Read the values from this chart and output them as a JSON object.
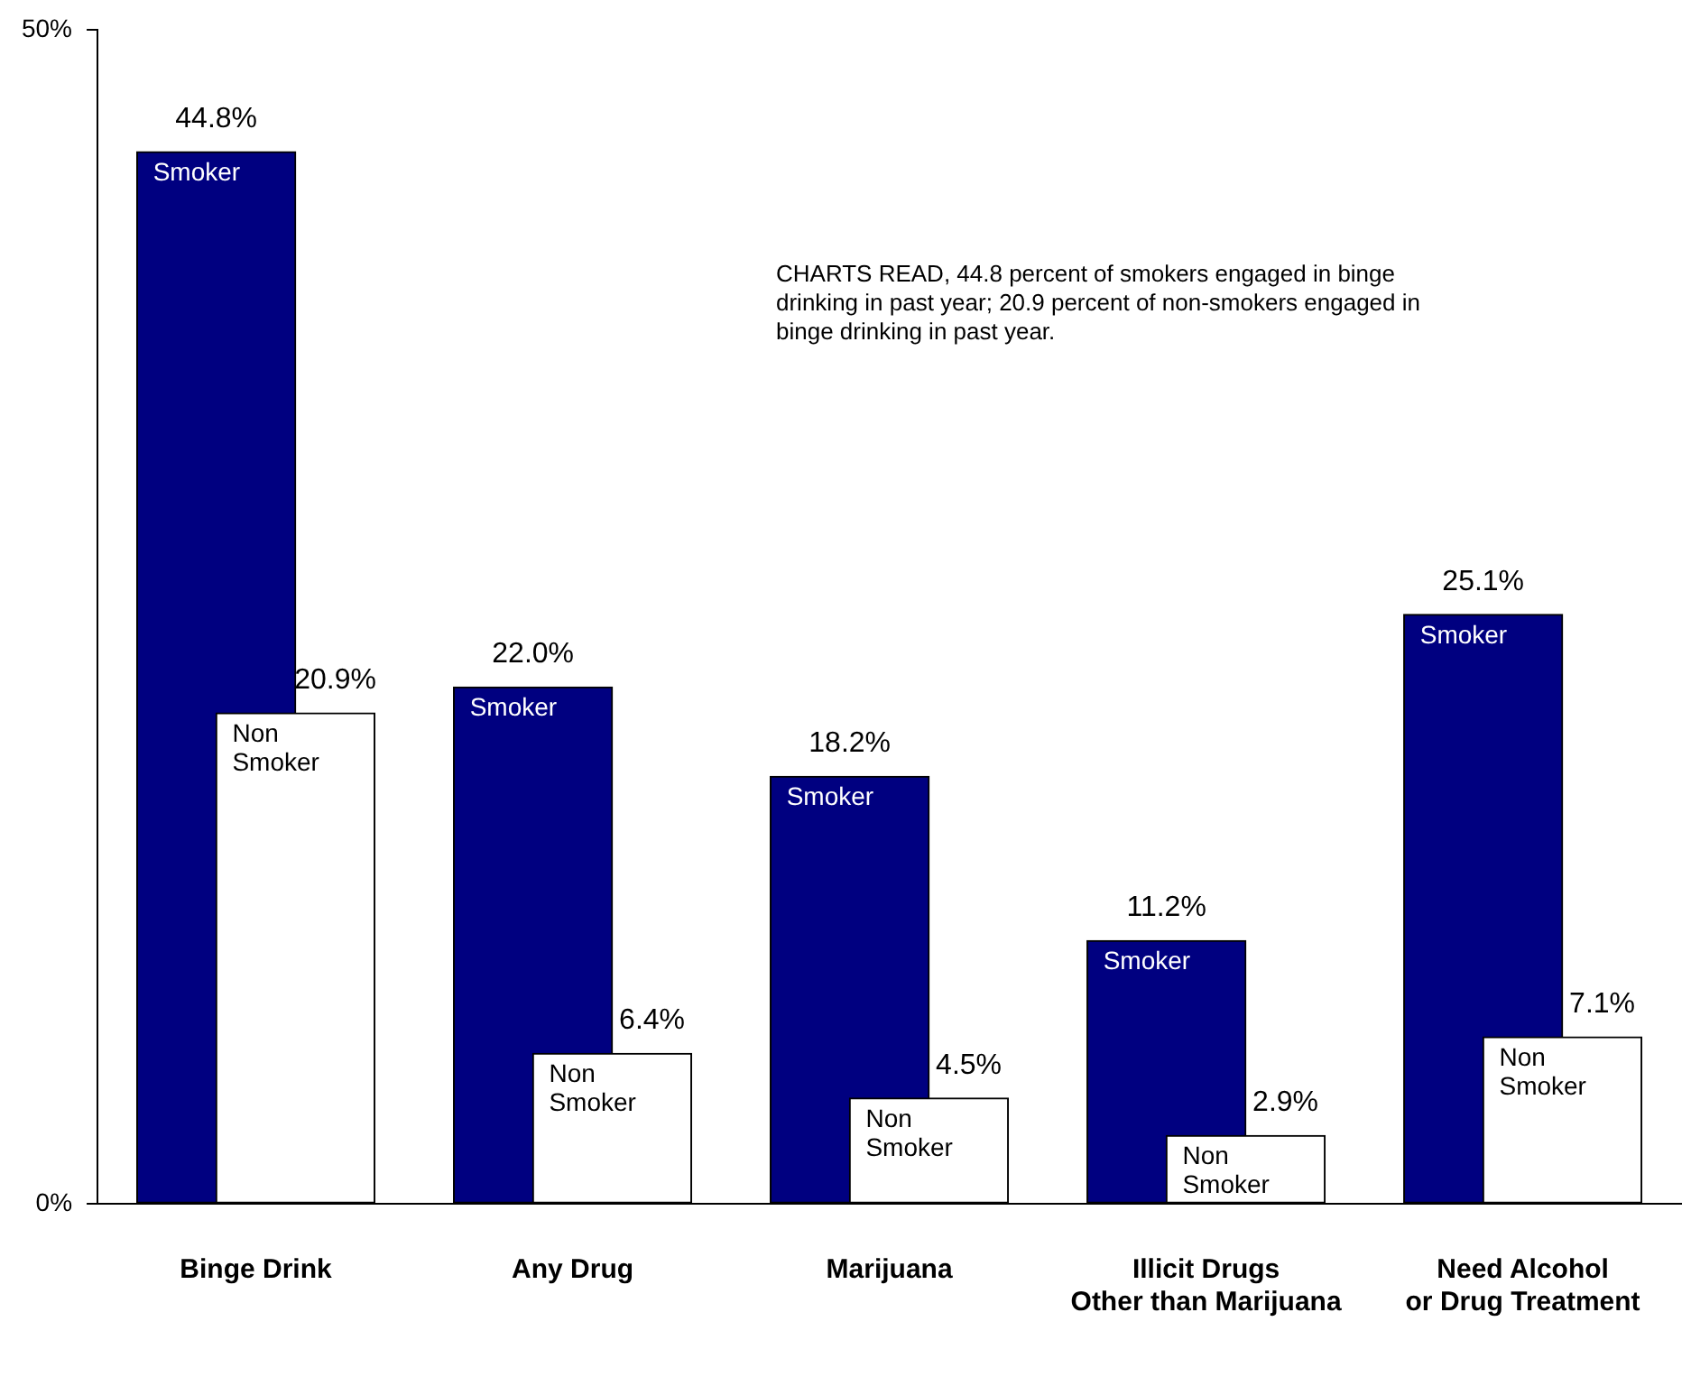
{
  "chart_data": {
    "type": "bar",
    "categories": [
      "Binge Drink",
      "Any Drug",
      "Marijuana",
      "Illicit Drugs\nOther than Marijuana",
      "Need Alcohol\nor Drug Treatment"
    ],
    "series": [
      {
        "name": "Smoker",
        "color": "#000080",
        "values": [
          44.8,
          22.0,
          18.2,
          11.2,
          25.1
        ],
        "value_labels": [
          "44.8%",
          "22.0%",
          "18.2%",
          "11.2%",
          "25.1%"
        ]
      },
      {
        "name": "Non Smoker",
        "color": "#ffffff",
        "values": [
          20.9,
          6.4,
          4.5,
          2.9,
          7.1
        ],
        "value_labels": [
          "20.9%",
          "6.4%",
          "4.5%",
          "2.9%",
          "7.1%"
        ]
      }
    ],
    "ylim": [
      0,
      50
    ],
    "yticks": [
      {
        "value": 0,
        "label": "0%"
      },
      {
        "value": 50,
        "label": "50%"
      }
    ],
    "grid": false,
    "legend": false,
    "annotations": [
      "CHARTS READ, 44.8 percent of smokers engaged in binge drinking in past year; 20.9 percent of non-smokers engaged in binge drinking in past year."
    ]
  }
}
